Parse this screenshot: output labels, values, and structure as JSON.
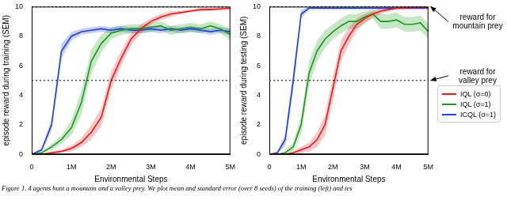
{
  "caption": "Figure 1. 4 agents hunt a mountain and a valley prey. We plot mean and standard error (over 8 seeds) of the training (left) and tes",
  "chart_data": [
    {
      "type": "line",
      "x_label": "Environmental Steps",
      "y_label": "episode reward during training (SEM)",
      "xlim": [
        0,
        5000000
      ],
      "xticks": [
        0,
        {
          "value": 1000000,
          "label": "1M"
        },
        {
          "value": 2000000,
          "label": "2M"
        },
        {
          "value": 3000000,
          "label": "3M"
        },
        {
          "value": 4000000,
          "label": "4M"
        },
        {
          "value": 5000000,
          "label": "5M"
        }
      ],
      "ylim": [
        0,
        10
      ],
      "yticks": [
        0,
        2,
        4,
        6,
        8,
        10
      ],
      "grid": false,
      "hlines": [
        10,
        5
      ],
      "x": [
        0,
        250000,
        500000,
        750000,
        1000000,
        1250000,
        1500000,
        1750000,
        2000000,
        2250000,
        2500000,
        2750000,
        3000000,
        3250000,
        3500000,
        3750000,
        4000000,
        4250000,
        4500000,
        4750000,
        5000000
      ],
      "series": [
        {
          "name": "IQL (σ=0)",
          "color": "#e41a1c",
          "values": [
            0,
            0,
            0.1,
            0.2,
            0.4,
            0.8,
            1.5,
            2.5,
            5.0,
            6.5,
            7.8,
            8.5,
            9.0,
            9.3,
            9.5,
            9.6,
            9.7,
            9.8,
            9.8,
            9.85,
            9.9
          ],
          "sem": [
            0,
            0,
            0.1,
            0.1,
            0.2,
            0.3,
            0.5,
            0.6,
            0.6,
            0.5,
            0.4,
            0.3,
            0.2,
            0.2,
            0.2,
            0.1,
            0.1,
            0.1,
            0.1,
            0.1,
            0.1
          ]
        },
        {
          "name": "IQL (σ=1)",
          "color": "#1a9a1a",
          "values": [
            0,
            0.1,
            0.5,
            1.0,
            1.8,
            3.5,
            6.3,
            7.5,
            8.2,
            8.4,
            8.5,
            8.5,
            8.6,
            8.7,
            8.4,
            8.5,
            8.6,
            8.5,
            8.7,
            8.5,
            8.1
          ],
          "sem": [
            0,
            0.1,
            0.2,
            0.3,
            0.5,
            0.8,
            0.8,
            0.6,
            0.4,
            0.3,
            0.3,
            0.3,
            0.3,
            0.3,
            0.3,
            0.3,
            0.3,
            0.3,
            0.3,
            0.3,
            0.4
          ]
        },
        {
          "name": "ICQL (σ=1)",
          "color": "#1f3fdf",
          "values": [
            0,
            0.3,
            2.0,
            7.0,
            8.0,
            8.3,
            8.4,
            8.5,
            8.4,
            8.5,
            8.4,
            8.4,
            8.5,
            8.4,
            8.5,
            8.4,
            8.5,
            8.4,
            8.3,
            8.4,
            8.3
          ],
          "sem": [
            0,
            0.1,
            0.4,
            0.5,
            0.3,
            0.2,
            0.2,
            0.2,
            0.2,
            0.2,
            0.2,
            0.2,
            0.2,
            0.2,
            0.2,
            0.2,
            0.2,
            0.2,
            0.2,
            0.2,
            0.2
          ]
        }
      ]
    },
    {
      "type": "line",
      "x_label": "Environmental Steps",
      "y_label": "episode reward during testing (SEM)",
      "xlim": [
        0,
        5000000
      ],
      "xticks": [
        0,
        {
          "value": 1000000,
          "label": "1M"
        },
        {
          "value": 2000000,
          "label": "2M"
        },
        {
          "value": 3000000,
          "label": "3M"
        },
        {
          "value": 4000000,
          "label": "4M"
        },
        {
          "value": 5000000,
          "label": "5M"
        }
      ],
      "ylim": [
        0,
        10
      ],
      "yticks": [
        0,
        2,
        4,
        6,
        8,
        10
      ],
      "grid": false,
      "legend": "right",
      "hlines": [
        10,
        5
      ],
      "annotations": [
        {
          "y": 10,
          "text": "reward for mountain prey"
        },
        {
          "y": 5,
          "text": "reward for valley prey"
        }
      ],
      "x": [
        0,
        250000,
        500000,
        750000,
        1000000,
        1250000,
        1500000,
        1750000,
        2000000,
        2250000,
        2500000,
        2750000,
        3000000,
        3250000,
        3500000,
        3750000,
        4000000,
        4250000,
        4500000,
        4750000,
        5000000
      ],
      "series": [
        {
          "name": "IQL (σ=0)",
          "color": "#e41a1c",
          "values": [
            0,
            0,
            0,
            0.1,
            0.3,
            0.5,
            1.0,
            2.0,
            4.5,
            7.0,
            8.0,
            8.8,
            9.2,
            9.5,
            9.7,
            9.8,
            9.9,
            9.9,
            9.95,
            9.95,
            9.95
          ],
          "sem": [
            0,
            0,
            0,
            0.1,
            0.2,
            0.3,
            0.5,
            0.7,
            0.8,
            0.7,
            0.6,
            0.4,
            0.3,
            0.2,
            0.2,
            0.1,
            0.1,
            0.1,
            0.1,
            0.1,
            0.1
          ]
        },
        {
          "name": "IQL (σ=1)",
          "color": "#1a9a1a",
          "values": [
            0,
            0,
            0.1,
            0.5,
            2.0,
            5.5,
            7.0,
            7.8,
            8.3,
            8.7,
            9.0,
            9.0,
            9.3,
            9.5,
            9.0,
            9.0,
            9.1,
            8.8,
            8.8,
            8.9,
            8.3
          ],
          "sem": [
            0,
            0,
            0.1,
            0.3,
            0.6,
            0.8,
            0.7,
            0.6,
            0.5,
            0.5,
            0.5,
            0.5,
            0.4,
            0.3,
            0.5,
            0.5,
            0.5,
            0.5,
            0.5,
            0.5,
            0.5
          ]
        },
        {
          "name": "ICQL (σ=1)",
          "color": "#1f3fdf",
          "values": [
            0,
            0.1,
            1.0,
            5.0,
            9.5,
            9.9,
            9.9,
            9.9,
            9.9,
            9.9,
            9.9,
            9.9,
            9.9,
            9.9,
            9.9,
            9.9,
            9.9,
            9.9,
            9.9,
            9.9,
            9.9
          ],
          "sem": [
            0,
            0.1,
            0.4,
            0.6,
            0.3,
            0.1,
            0.1,
            0.1,
            0.1,
            0.1,
            0.1,
            0.1,
            0.1,
            0.1,
            0.1,
            0.1,
            0.1,
            0.1,
            0.1,
            0.1,
            0.1
          ]
        }
      ]
    }
  ]
}
